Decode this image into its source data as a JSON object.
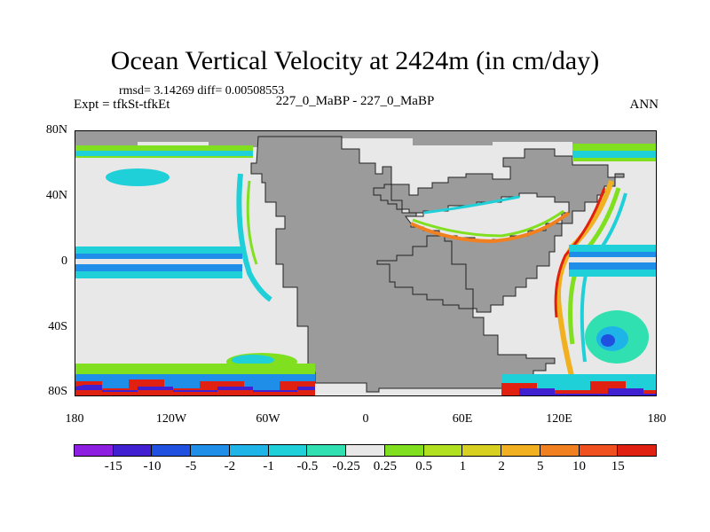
{
  "title": "Ocean Vertical Velocity at 2424m (in cm/day)",
  "stats": "rmsd= 3.14269 diff= 0.00508553",
  "expt": "Expt = tfkSt-tfkEt",
  "subtitle": "227_0_MaBP - 227_0_MaBP",
  "season": "ANN",
  "y_ticks": [
    "80N",
    "40N",
    "0",
    "40S",
    "80S"
  ],
  "x_ticks": [
    "180",
    "120W",
    "60W",
    "0",
    "60E",
    "120E",
    "180"
  ],
  "colorbar": {
    "labels": [
      "-15",
      "-10",
      "-5",
      "-2",
      "-1",
      "-0.5",
      "-0.25",
      "0.25",
      "0.5",
      "1",
      "2",
      "5",
      "10",
      "15"
    ],
    "colors": [
      "#8c1fe0",
      "#4020d0",
      "#2050e0",
      "#1f8ee8",
      "#1fb4e8",
      "#20d0d8",
      "#30e0b0",
      "#e8e8e8",
      "#80e020",
      "#b0e020",
      "#d8d020",
      "#f0b020",
      "#f08020",
      "#f05020",
      "#e02010"
    ]
  },
  "land_color": "#9b9b9b",
  "ocean_neutral_color": "#e8e8e8"
}
